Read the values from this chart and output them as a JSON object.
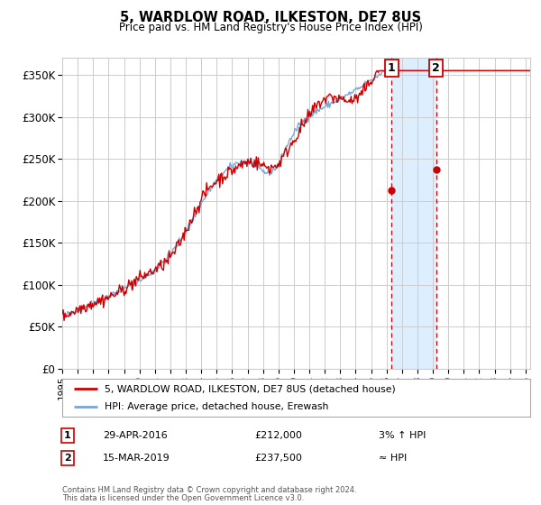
{
  "title": "5, WARDLOW ROAD, ILKESTON, DE7 8US",
  "subtitle": "Price paid vs. HM Land Registry's House Price Index (HPI)",
  "ylabel_ticks": [
    "£0",
    "£50K",
    "£100K",
    "£150K",
    "£200K",
    "£250K",
    "£300K",
    "£350K"
  ],
  "ytick_values": [
    0,
    50000,
    100000,
    150000,
    200000,
    250000,
    300000,
    350000
  ],
  "ylim": [
    0,
    370000
  ],
  "xlim_start": 1995.0,
  "xlim_end": 2025.3,
  "sale1_date": 2016.32,
  "sale1_price": 212000,
  "sale2_date": 2019.21,
  "sale2_price": 237500,
  "hpi_color": "#7aa6d4",
  "price_color": "#cc0000",
  "shade_color": "#ddeeff",
  "grid_color": "#cccccc",
  "bg_color": "#ffffff",
  "legend_line1": "5, WARDLOW ROAD, ILKESTON, DE7 8US (detached house)",
  "legend_line2": "HPI: Average price, detached house, Erewash",
  "footer1": "Contains HM Land Registry data © Crown copyright and database right 2024.",
  "footer2": "This data is licensed under the Open Government Licence v3.0.",
  "hpi_seed": 42,
  "noise_scale_hpi": 2000,
  "noise_scale_price": 4000
}
